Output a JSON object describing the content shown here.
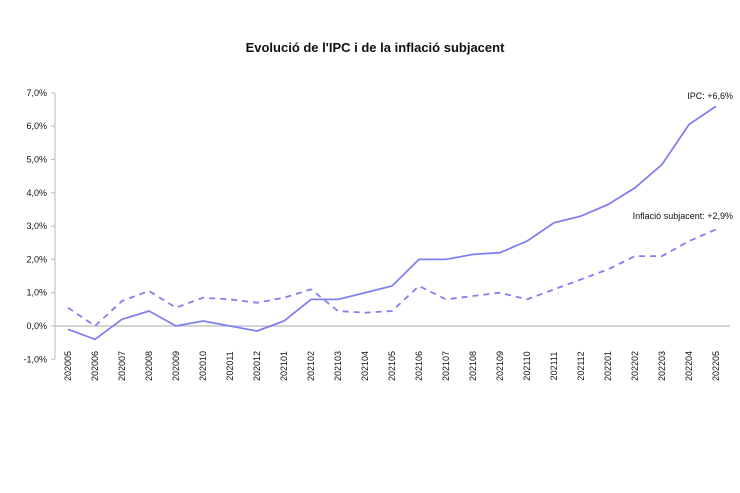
{
  "chart_data": {
    "type": "line",
    "title": "Evolució de l'IPC i de la inflació subjacent",
    "xlabel": "",
    "ylabel": "",
    "ylim": [
      -1,
      7
    ],
    "yticks": [
      -1,
      0,
      1,
      2,
      3,
      4,
      5,
      6,
      7
    ],
    "ytick_labels": [
      "-1,0%",
      "0,0%",
      "1,0%",
      "2,0%",
      "3,0%",
      "4,0%",
      "5,0%",
      "6,0%",
      "7,0%"
    ],
    "grid": false,
    "categories": [
      "202005",
      "202006",
      "202007",
      "202008",
      "202009",
      "202010",
      "202011",
      "202012",
      "202101",
      "202102",
      "202103",
      "202104",
      "202105",
      "202106",
      "202107",
      "202108",
      "202109",
      "202110",
      "202111",
      "202112",
      "202201",
      "202202",
      "202203",
      "202204",
      "202205"
    ],
    "series": [
      {
        "style": "solid",
        "color": "#8080f0",
        "values": [
          -0.1,
          -0.4,
          0.2,
          0.45,
          0.0,
          0.15,
          0.0,
          -0.15,
          0.15,
          0.8,
          0.8,
          1.0,
          1.2,
          2.0,
          2.0,
          2.15,
          2.2,
          2.55,
          3.1,
          3.3,
          3.65,
          4.15,
          4.85,
          6.05,
          6.6
        ]
      },
      {
        "style": "dashed",
        "color": "#8080f0",
        "values": [
          0.55,
          0.0,
          0.75,
          1.05,
          0.55,
          0.85,
          0.8,
          0.7,
          0.85,
          1.1,
          0.45,
          0.4,
          0.45,
          1.2,
          0.8,
          0.9,
          1.0,
          0.8,
          1.1,
          1.4,
          1.7,
          2.1,
          2.1,
          2.55,
          2.9
        ]
      }
    ],
    "annotations": [
      "IPC: +6,6%",
      "Inflació subjacent: +2,9%"
    ]
  }
}
